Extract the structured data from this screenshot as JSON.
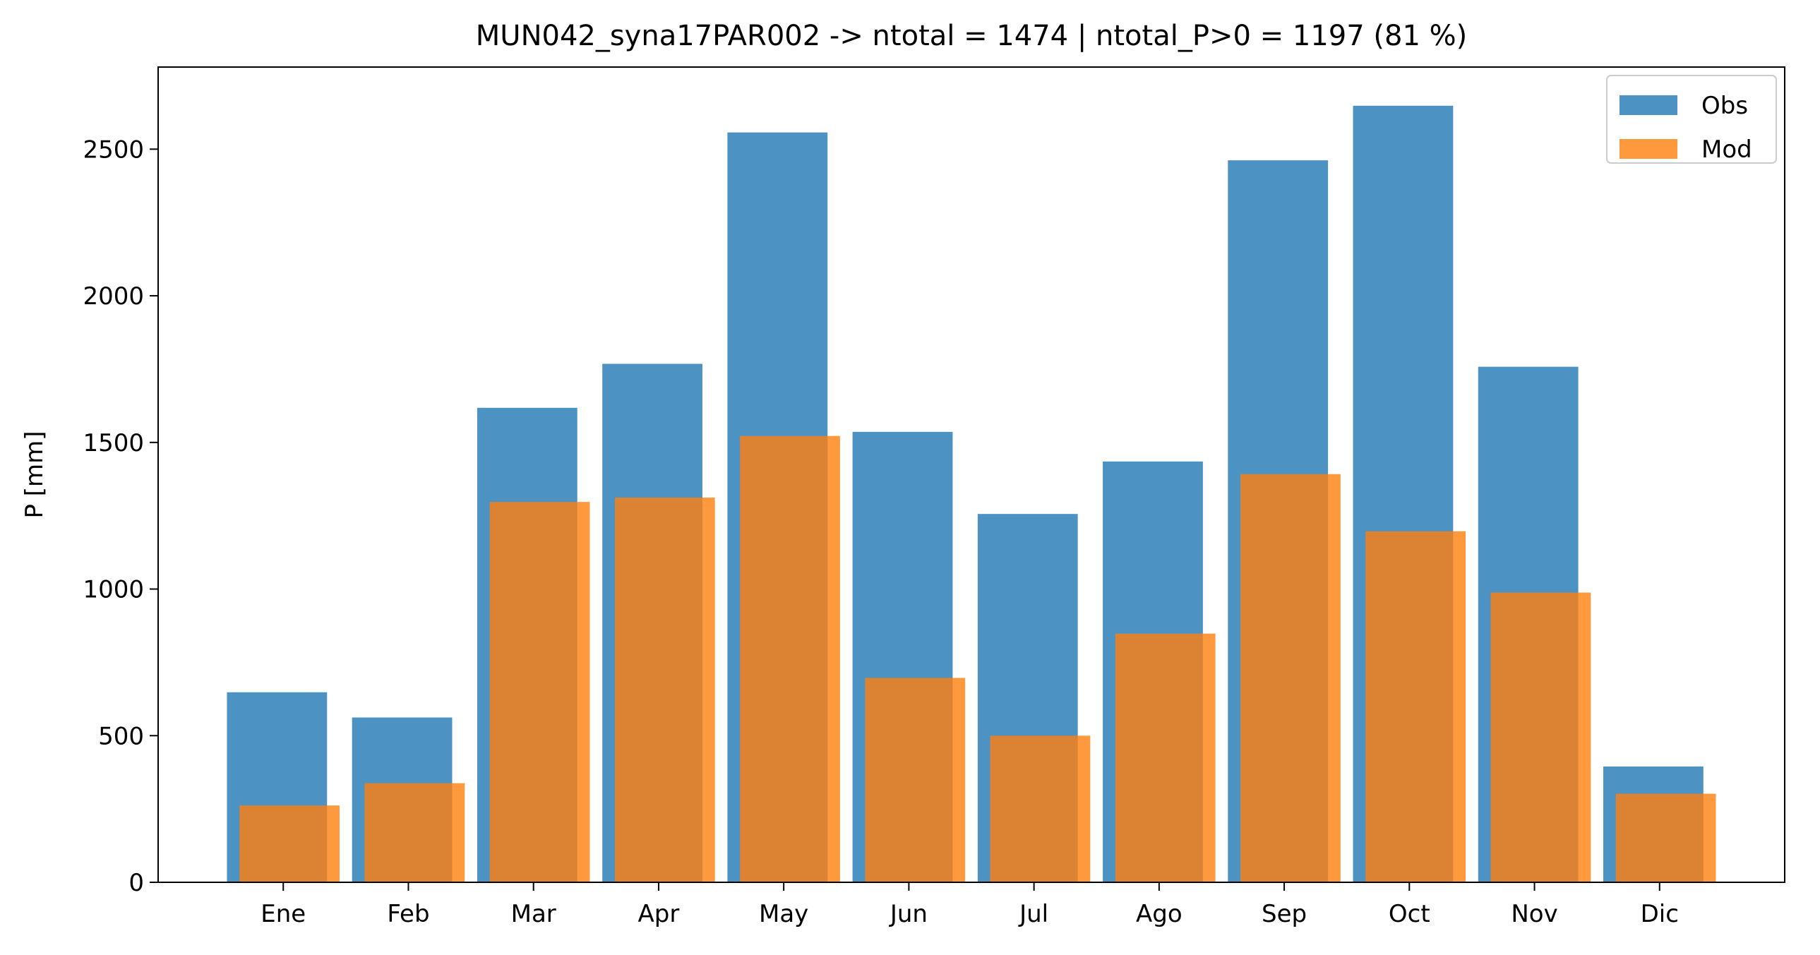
{
  "chart_data": {
    "type": "bar",
    "title": "MUN042_syna17PAR002 -> ntotal = 1474 | ntotal_P>0 = 1197 (81 %)",
    "xlabel": "",
    "ylabel": "P [mm]",
    "categories": [
      "Ene",
      "Feb",
      "Mar",
      "Apr",
      "May",
      "Jun",
      "Jul",
      "Ago",
      "Sep",
      "Oct",
      "Nov",
      "Dic"
    ],
    "series": [
      {
        "name": "Obs",
        "color": "#1f77b4",
        "opacity": 0.8,
        "values": [
          648,
          562,
          1618,
          1768,
          2557,
          1536,
          1256,
          1435,
          2462,
          2648,
          1758,
          395
        ]
      },
      {
        "name": "Mod",
        "color": "#ff7f0e",
        "opacity": 0.8,
        "values": [
          262,
          338,
          1297,
          1312,
          1522,
          697,
          500,
          848,
          1392,
          1197,
          988,
          302
        ]
      }
    ],
    "ylim": [
      0,
      2780
    ],
    "yticks": [
      0,
      500,
      1000,
      1500,
      2000,
      2500
    ],
    "grid": false,
    "legend_position": "top-right"
  }
}
